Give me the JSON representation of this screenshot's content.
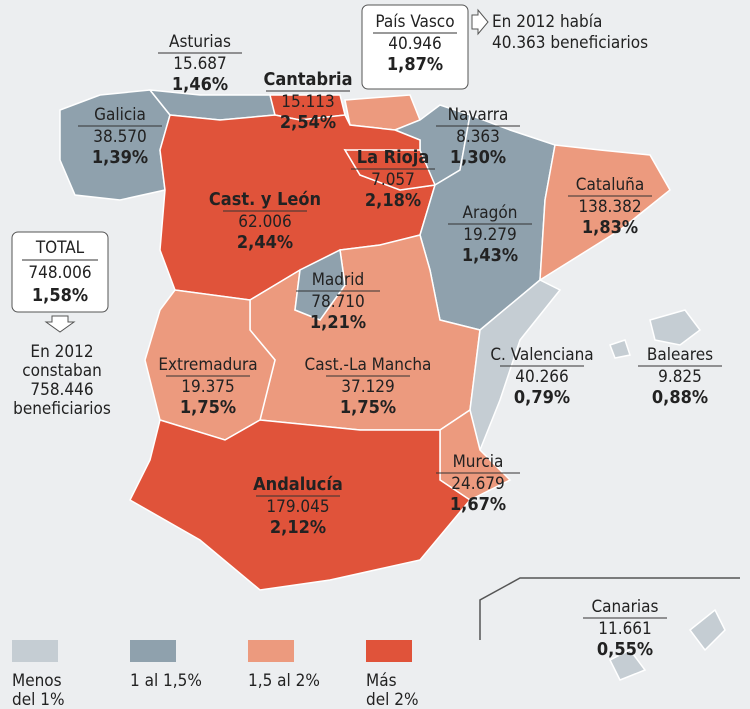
{
  "regions": [
    {
      "name": "Galicia",
      "value": "38.570",
      "pct": "1,39%"
    },
    {
      "name": "Asturias",
      "value": "15.687",
      "pct": "1,46%"
    },
    {
      "name": "Cantabria",
      "value": "15.113",
      "pct": "2,54%"
    },
    {
      "name": "País Vasco",
      "value": "40.946",
      "pct": "1,87%"
    },
    {
      "name": "Navarra",
      "value": "8.363",
      "pct": "1,30%"
    },
    {
      "name": "La Rioja",
      "value": "7.057",
      "pct": "2,18%"
    },
    {
      "name": "Cast. y León",
      "value": "62.006",
      "pct": "2,44%"
    },
    {
      "name": "Cataluña",
      "value": "138.382",
      "pct": "1,83%"
    },
    {
      "name": "Aragón",
      "value": "19.279",
      "pct": "1,43%"
    },
    {
      "name": "Madrid",
      "value": "78.710",
      "pct": "1,21%"
    },
    {
      "name": "Extremadura",
      "value": "19.375",
      "pct": "1,75%"
    },
    {
      "name": "Cast.-La Mancha",
      "value": "37.129",
      "pct": "1,75%"
    },
    {
      "name": "C. Valenciana",
      "value": "40.266",
      "pct": "0,79%"
    },
    {
      "name": "Baleares",
      "value": "9.825",
      "pct": "0,88%"
    },
    {
      "name": "Murcia",
      "value": "24.679",
      "pct": "1,67%"
    },
    {
      "name": "Andalucía",
      "value": "179.045",
      "pct": "2,12%"
    },
    {
      "name": "Canarias",
      "value": "11.661",
      "pct": "0,55%"
    }
  ],
  "total": {
    "label": "TOTAL",
    "value": "748.006",
    "pct": "1,58%",
    "note": [
      "En 2012",
      "constaban",
      "758.446",
      "beneficiarios"
    ]
  },
  "pais_vasco_note": [
    "En 2012 había",
    "40.363 beneficiarios"
  ],
  "legend": [
    {
      "lines": [
        "Menos",
        "del 1%"
      ]
    },
    {
      "lines": [
        "1 al 1,5%"
      ]
    },
    {
      "lines": [
        "1,5 al 2%"
      ]
    },
    {
      "lines": [
        "Más",
        "del 2%"
      ]
    }
  ]
}
